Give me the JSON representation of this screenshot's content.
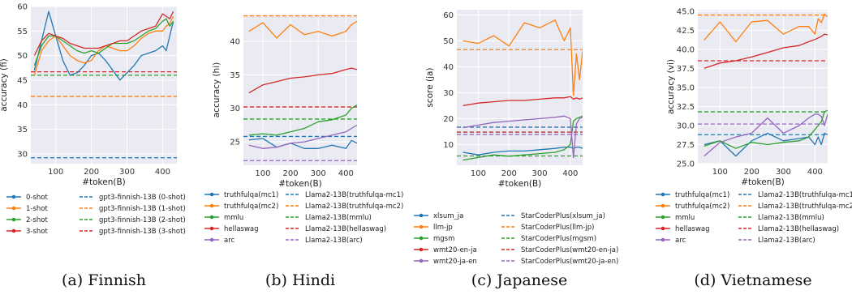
{
  "chart_data": [
    {
      "type": "line",
      "caption": "(a) Finnish",
      "xlabel": "#token(B)",
      "ylabel": "accuracy (fi)",
      "xlim": [
        30,
        440
      ],
      "ylim": [
        28,
        60
      ],
      "xticks": [
        100,
        200,
        300,
        400
      ],
      "yticks": [
        30,
        35,
        40,
        45,
        50,
        55,
        60
      ],
      "grid": true,
      "legend_position": "bottom",
      "x": [
        40,
        60,
        80,
        100,
        120,
        140,
        160,
        180,
        200,
        220,
        240,
        260,
        280,
        300,
        320,
        340,
        360,
        380,
        400,
        410,
        420,
        430
      ],
      "series": [
        {
          "name": "0-shot",
          "color": "#1f77b4",
          "values": [
            47,
            53,
            59,
            54,
            49,
            46,
            46.5,
            48,
            50,
            50.5,
            49,
            47,
            45,
            46.5,
            48,
            50,
            50.5,
            51,
            52,
            51,
            54,
            57
          ]
        },
        {
          "name": "1-shot",
          "color": "#ff7f0e",
          "values": [
            46,
            51,
            53,
            54,
            52,
            50,
            49,
            48.5,
            49,
            51,
            52,
            51.5,
            51,
            51,
            52,
            53.5,
            54.5,
            55,
            55,
            56,
            56.5,
            58
          ]
        },
        {
          "name": "2-shot",
          "color": "#2ca02c",
          "values": [
            48,
            52,
            54,
            54,
            53,
            52,
            51,
            50.5,
            51,
            50.5,
            51.5,
            52.5,
            52.5,
            52.5,
            53,
            54,
            55,
            55.5,
            57,
            57.5,
            56,
            57
          ]
        },
        {
          "name": "3-shot",
          "color": "#d62728",
          "values": [
            50,
            53,
            54.5,
            54,
            53.5,
            52.5,
            52,
            51.5,
            51.5,
            51.5,
            52,
            52.5,
            53,
            53,
            54,
            55,
            55.5,
            56,
            58.5,
            58,
            57.5,
            59
          ]
        }
      ],
      "baselines": [
        {
          "name": "gpt3-finnish-13B (0-shot)",
          "color": "#1f77b4",
          "value": 29.2
        },
        {
          "name": "gpt3-finnish-13B (1-shot)",
          "color": "#ff7f0e",
          "value": 41.7
        },
        {
          "name": "gpt3-finnish-13B (2-shot)",
          "color": "#2ca02c",
          "value": 46.0
        },
        {
          "name": "gpt3-finnish-13B (3-shot)",
          "color": "#d62728",
          "value": 46.7
        }
      ]
    },
    {
      "type": "line",
      "caption": "(b) Hindi",
      "xlabel": "#token(B)",
      "ylabel": "accuracy (hi)",
      "xlim": [
        30,
        440
      ],
      "ylim": [
        21.5,
        44
      ],
      "xticks": [
        100,
        200,
        300,
        400
      ],
      "yticks": [
        25,
        30,
        35,
        40
      ],
      "grid": true,
      "legend_position": "bottom",
      "x": [
        50,
        100,
        150,
        200,
        250,
        300,
        350,
        400,
        420,
        440
      ],
      "series": [
        {
          "name": "truthfulqa(mc1)",
          "color": "#1f77b4",
          "values": [
            25.3,
            25.5,
            24.2,
            24.8,
            24.0,
            24.0,
            24.5,
            24.0,
            25.2,
            24.8
          ]
        },
        {
          "name": "truthfulqa(mc2)",
          "color": "#ff7f0e",
          "values": [
            41.5,
            42.8,
            40.5,
            42.5,
            41.0,
            41.5,
            40.8,
            41.5,
            42.5,
            43.0
          ]
        },
        {
          "name": "mmlu",
          "color": "#2ca02c",
          "values": [
            26.0,
            26.2,
            26.0,
            26.5,
            27.0,
            28.0,
            28.3,
            29.0,
            30.0,
            30.5
          ]
        },
        {
          "name": "hellaswag",
          "color": "#d62728",
          "values": [
            32.3,
            33.5,
            34.0,
            34.5,
            34.7,
            35.0,
            35.2,
            35.8,
            36.0,
            35.8
          ]
        },
        {
          "name": "arc",
          "color": "#9467bd",
          "values": [
            24.5,
            24.0,
            24.2,
            24.8,
            25.0,
            25.5,
            26.0,
            26.5,
            27.0,
            27.5
          ]
        }
      ],
      "baselines": [
        {
          "name": "Llama2-13B(truthfulqa-mc1)",
          "color": "#1f77b4",
          "value": 25.8
        },
        {
          "name": "Llama2-13B(truthfulqa-mc2)",
          "color": "#ff7f0e",
          "value": 43.8
        },
        {
          "name": "Llama2-13B(mmlu)",
          "color": "#2ca02c",
          "value": 28.4
        },
        {
          "name": "Llama2-13B(hellaswag)",
          "color": "#d62728",
          "value": 30.2
        },
        {
          "name": "Llama2-13B(arc)",
          "color": "#9467bd",
          "value": 22.2
        }
      ]
    },
    {
      "type": "line",
      "caption": "(c) Japanese",
      "xlabel": "#token(B)",
      "ylabel": "score (ja)",
      "xlim": [
        30,
        440
      ],
      "ylim": [
        2,
        62
      ],
      "xticks": [
        100,
        200,
        300,
        400
      ],
      "yticks": [
        10,
        20,
        30,
        40,
        50,
        60
      ],
      "grid": true,
      "legend_position": "bottom",
      "x": [
        50,
        100,
        150,
        200,
        250,
        300,
        350,
        380,
        400,
        410,
        420,
        430,
        440
      ],
      "series": [
        {
          "name": "xlsum_ja",
          "color": "#1f77b4",
          "values": [
            7,
            6,
            7,
            7.5,
            7.5,
            8,
            8.5,
            9,
            9,
            8.5,
            9,
            9,
            8.5
          ]
        },
        {
          "name": "llm-jp",
          "color": "#ff7f0e",
          "values": [
            50,
            49,
            52,
            48,
            57,
            55,
            58,
            50,
            55,
            29,
            45,
            35,
            46
          ]
        },
        {
          "name": "mgsm",
          "color": "#2ca02c",
          "values": [
            4,
            5,
            6,
            5.5,
            6,
            6.5,
            7,
            8,
            10,
            19,
            20,
            20.5,
            21
          ]
        },
        {
          "name": "wmt20-en-ja",
          "color": "#d62728",
          "values": [
            25,
            26,
            26.5,
            27,
            27,
            27.5,
            28,
            28,
            28.5,
            27.5,
            28,
            27.5,
            28
          ]
        },
        {
          "name": "wmt20-ja-en",
          "color": "#9467bd",
          "values": [
            16.5,
            17.5,
            18.5,
            19,
            19.5,
            20,
            20.5,
            21,
            20,
            5,
            18,
            20,
            20.5
          ]
        }
      ],
      "baselines": [
        {
          "name": "StarCoderPlus(xlsum_ja)",
          "color": "#1f77b4",
          "value": 16.7
        },
        {
          "name": "StarCoderPlus(llm-jp)",
          "color": "#ff7f0e",
          "value": 46.6
        },
        {
          "name": "StarCoderPlus(mgsm)",
          "color": "#2ca02c",
          "value": 5.6
        },
        {
          "name": "StarCoderPlus(wmt20-en-ja)",
          "color": "#d62728",
          "value": 14.8
        },
        {
          "name": "StarCoderPlus(wmt20-ja-en)",
          "color": "#9467bd",
          "value": 13.9
        }
      ]
    },
    {
      "type": "line",
      "caption": "(d) Vietnamese",
      "xlabel": "#token(B)",
      "ylabel": "accuracy (vi)",
      "xlim": [
        30,
        440
      ],
      "ylim": [
        25,
        45.2
      ],
      "xticks": [
        100,
        200,
        300,
        400
      ],
      "yticks": [
        25.0,
        27.5,
        30.0,
        32.5,
        35.0,
        37.5,
        40.0,
        42.5,
        45.0
      ],
      "grid": true,
      "legend_position": "bottom",
      "x": [
        50,
        100,
        150,
        200,
        250,
        300,
        350,
        380,
        400,
        410,
        420,
        430,
        440
      ],
      "series": [
        {
          "name": "truthfulqa(mc1)",
          "color": "#1f77b4",
          "values": [
            27.5,
            28.0,
            26.0,
            28.0,
            29.0,
            28.0,
            28.3,
            28.5,
            27.5,
            28.5,
            27.5,
            29.0,
            28.8
          ]
        },
        {
          "name": "truthfulqa(mc2)",
          "color": "#ff7f0e",
          "values": [
            41.2,
            43.6,
            41.0,
            43.6,
            43.8,
            42.0,
            43.0,
            43.0,
            42.0,
            44.0,
            43.5,
            44.6,
            44.3
          ]
        },
        {
          "name": "mmlu",
          "color": "#2ca02c",
          "values": [
            27.3,
            28.0,
            27.0,
            27.8,
            27.5,
            27.8,
            28.0,
            28.5,
            29.5,
            30.0,
            30.5,
            31.8,
            32.0
          ]
        },
        {
          "name": "hellaswag",
          "color": "#d62728",
          "values": [
            37.5,
            38.2,
            38.5,
            39.0,
            39.6,
            40.2,
            40.5,
            41.0,
            41.3,
            41.5,
            41.7,
            42.0,
            41.9
          ]
        },
        {
          "name": "arc",
          "color": "#9467bd",
          "values": [
            26.0,
            27.8,
            28.5,
            29.0,
            31.0,
            29.0,
            30.0,
            31.0,
            31.5,
            31.5,
            31.2,
            30.0,
            31.5
          ]
        }
      ],
      "baselines": [
        {
          "name": "Llama2-13B(truthfulqa-mc1)",
          "color": "#1f77b4",
          "value": 28.8
        },
        {
          "name": "Llama2-13B(truthfulqa-mc2)",
          "color": "#ff7f0e",
          "value": 44.5
        },
        {
          "name": "Llama2-13B(mmlu)",
          "color": "#2ca02c",
          "value": 31.8
        },
        {
          "name": "Llama2-13B(hellaswag)",
          "color": "#d62728",
          "value": 38.5
        },
        {
          "name": "Llama2-13B(arc)",
          "color": "#9467bd",
          "value": 30.2
        }
      ]
    }
  ]
}
